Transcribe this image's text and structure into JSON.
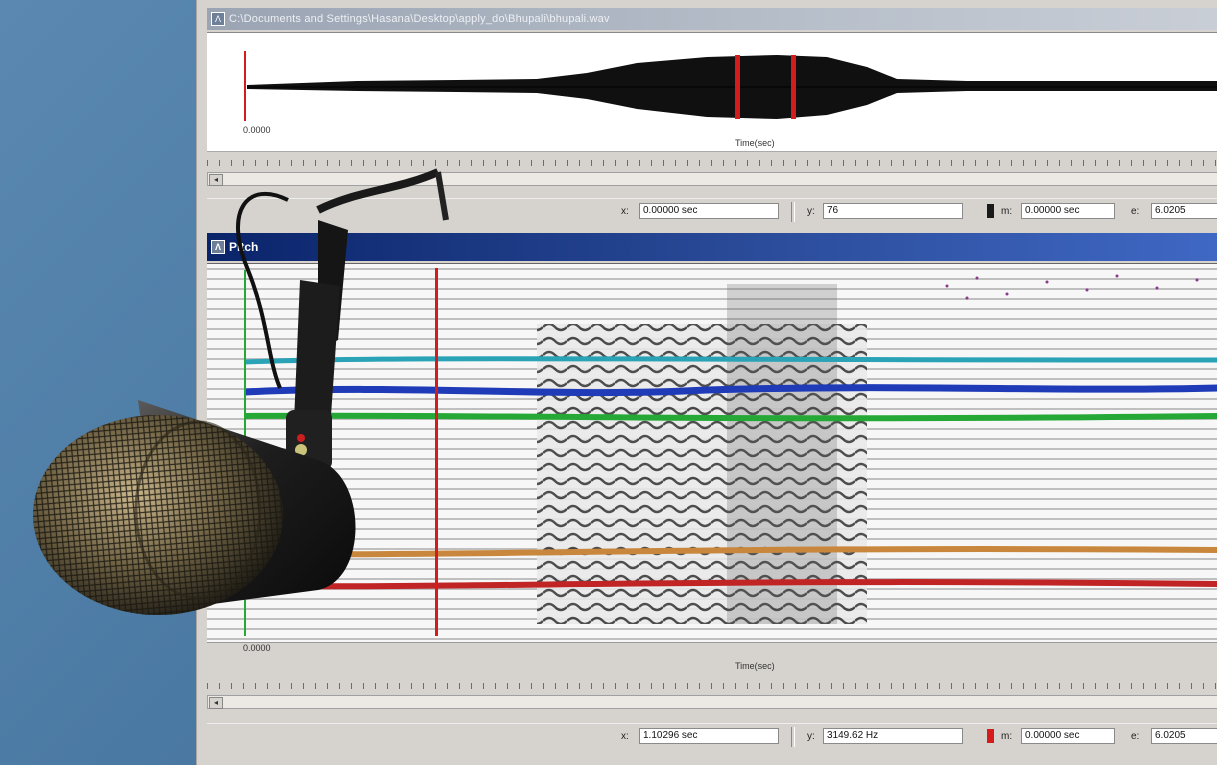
{
  "waveform_window": {
    "title": "C:\\Documents and Settings\\Hasana\\Desktop\\apply_do\\Bhupali\\bhupali.wav",
    "x_axis_start": "0.0000",
    "x_axis_label": "Time(sec)",
    "status": {
      "x_label": "x:",
      "x_value": "0.00000 sec",
      "y_label": "y:",
      "y_value": "76",
      "m_label": "m:",
      "m_value": "0.00000 sec",
      "e_label": "e:",
      "e_value": "6.0205"
    }
  },
  "spectrogram_window": {
    "title": "Pitch",
    "x_axis_start": "0.0000",
    "x_axis_label": "Time(sec)",
    "status": {
      "x_label": "x:",
      "x_value": "1.10296 sec",
      "y_label": "y:",
      "y_value": "3149.62 Hz",
      "m_label": "m:",
      "m_value": "0.00000 sec",
      "e_label": "e:",
      "e_value": "6.0205"
    }
  },
  "colors": {
    "marker": "#d41c1c",
    "active_title": "#0a246a",
    "harmonic_cyan": "#2aa3b7",
    "harmonic_blue": "#1f3bb8",
    "harmonic_green": "#25a836",
    "harmonic_orange": "#c8873c",
    "harmonic_red": "#c02424"
  },
  "icons": [
    "window-icon",
    "scroll-left-icon",
    "microphone-icon"
  ]
}
